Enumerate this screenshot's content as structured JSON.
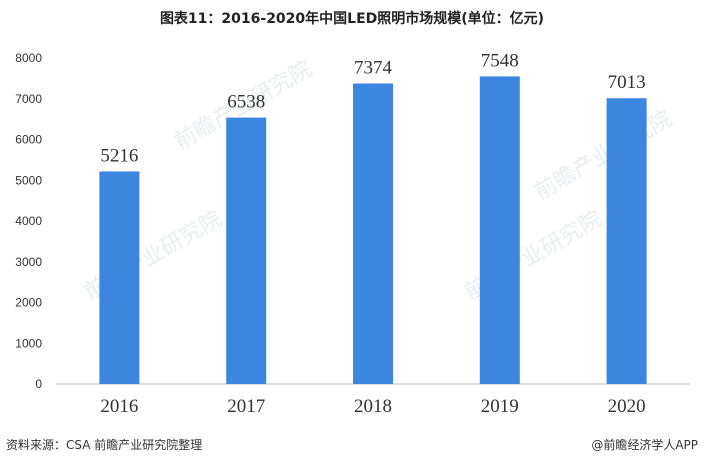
{
  "title": "图表11：2016-2020年中国LED照明市场规模(单位：亿元)",
  "footer": {
    "source": "资料来源：CSA 前瞻产业研究院整理",
    "brand": "@前瞻经济学人APP"
  },
  "watermark": "前瞻产业研究院",
  "colors": {
    "bar": "#3d86e0",
    "axis": "#bfbfbf",
    "text": "#333333"
  },
  "chart_data": {
    "type": "bar",
    "categories": [
      "2016",
      "2017",
      "2018",
      "2019",
      "2020"
    ],
    "values": [
      5216,
      6538,
      7374,
      7548,
      7013
    ],
    "ylim": [
      0,
      8000
    ],
    "yticks": [
      0,
      1000,
      2000,
      3000,
      4000,
      5000,
      6000,
      7000,
      8000
    ],
    "grid": false,
    "xlabel": "",
    "ylabel": ""
  }
}
